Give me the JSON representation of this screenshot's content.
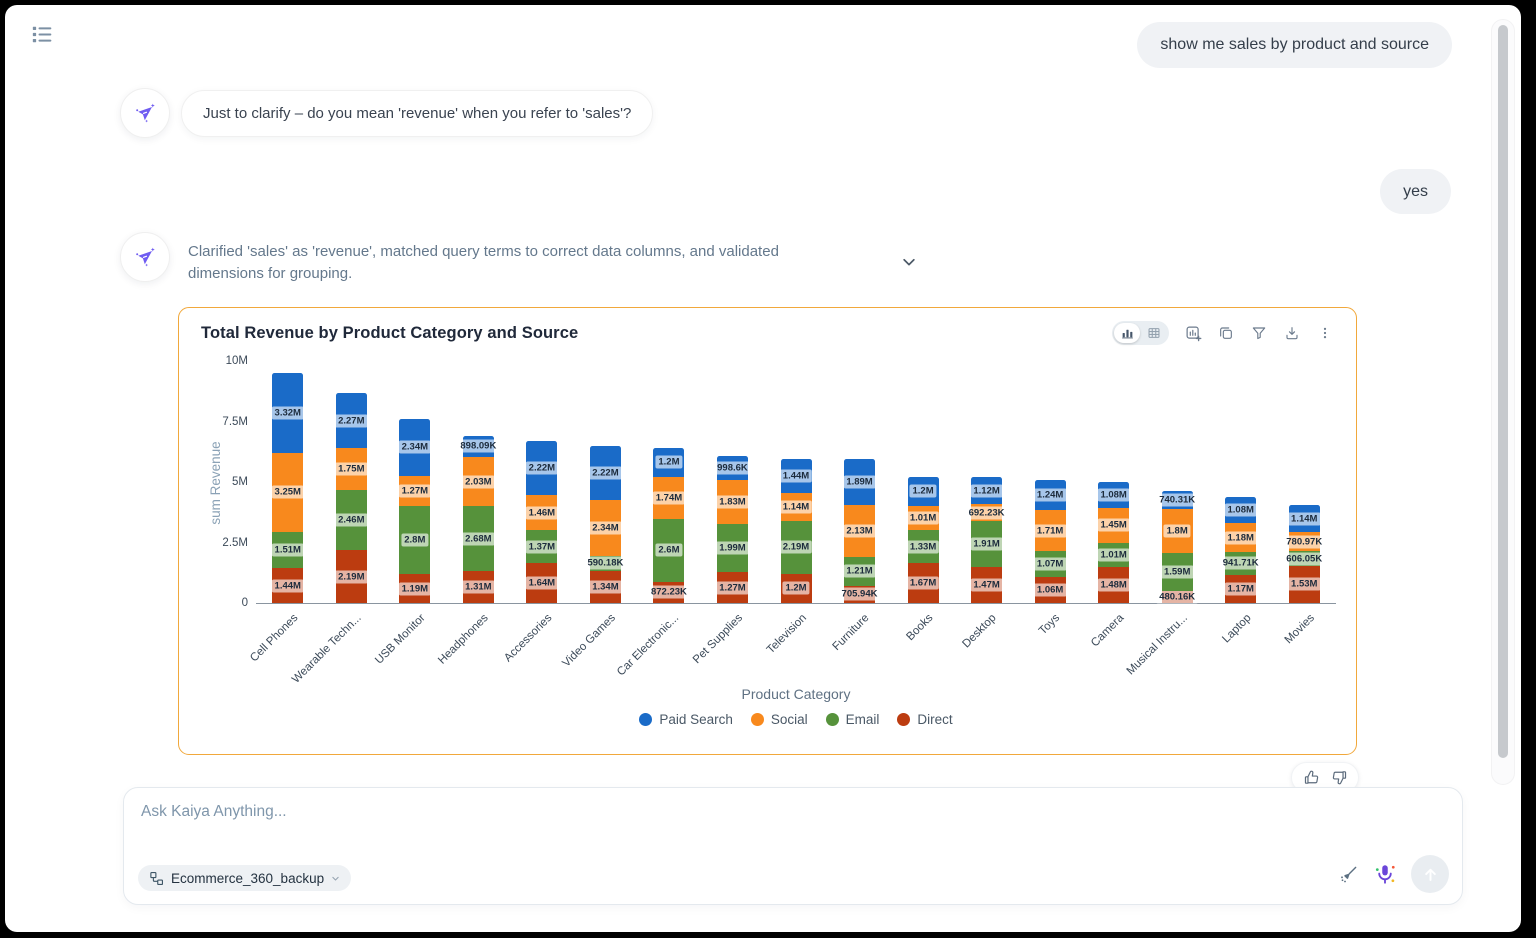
{
  "header": {
    "menu_icon": "list-icon"
  },
  "chat": {
    "user_message_1": "show me sales by product and source",
    "bot_clarify_message": "Just to clarify – do you mean 'revenue' when you refer to 'sales'?",
    "user_message_2": "yes",
    "bot_status_message": "Clarified 'sales' as 'revenue', matched query terms to correct data columns, and validated dimensions for grouping."
  },
  "chart_card": {
    "border_color": "#F1A83B",
    "toolbar_icons": [
      "bar-chart-view-toggle",
      "table-view-toggle",
      "add-chart",
      "duplicate",
      "filter",
      "download",
      "more-options"
    ],
    "feedback_icons": [
      "thumbs-up",
      "thumbs-down"
    ]
  },
  "chart_data": {
    "type": "bar",
    "stacked": true,
    "title": "Total Revenue by Product Category and Source",
    "xlabel": "Product Category",
    "ylabel": "sum Revenue",
    "ylim": [
      0,
      10000000
    ],
    "ytick_labels": [
      "0",
      "2.5M",
      "5M",
      "7.5M",
      "10M"
    ],
    "grid": false,
    "legend_position": "bottom",
    "categories": [
      "Cell Phones",
      "Wearable Techn...",
      "USB Monitor",
      "Headphones",
      "Accessories",
      "Video Games",
      "Car Electronic...",
      "Pet Supplies",
      "Television",
      "Furniture",
      "Books",
      "Desktop",
      "Toys",
      "Camera",
      "Musical Instru...",
      "Laptop",
      "Movies"
    ],
    "series": [
      {
        "name": "Direct",
        "color": "#BC3C10",
        "values_millions": [
          1.44,
          2.19,
          1.19,
          1.31,
          1.64,
          1.34,
          0.87223,
          1.27,
          1.2,
          0.70594,
          1.67,
          1.47,
          1.06,
          1.48,
          0.48016,
          1.17,
          1.53
        ],
        "labels": [
          "1.44M",
          "2.19M",
          "1.19M",
          "1.31M",
          "1.64M",
          "1.34M",
          "872.23K",
          "1.27M",
          "1.2M",
          "705.94K",
          "1.67M",
          "1.47M",
          "1.06M",
          "1.48M",
          "480.16K",
          "1.17M",
          "1.53M"
        ]
      },
      {
        "name": "Email",
        "color": "#56923B",
        "values_millions": [
          1.51,
          2.46,
          2.8,
          2.68,
          1.37,
          0.59018,
          2.6,
          1.99,
          2.19,
          1.21,
          1.33,
          1.91,
          1.07,
          1.01,
          1.59,
          0.94171,
          0.60605
        ],
        "labels": [
          "1.51M",
          "2.46M",
          "2.8M",
          "2.68M",
          "1.37M",
          "590.18K",
          "2.6M",
          "1.99M",
          "2.19M",
          "1.21M",
          "1.33M",
          "1.91M",
          "1.07M",
          "1.01M",
          "1.59M",
          "941.71K",
          "606.05K"
        ]
      },
      {
        "name": "Social",
        "color": "#F8891D",
        "values_millions": [
          3.25,
          1.75,
          1.27,
          2.03,
          1.46,
          2.34,
          1.74,
          1.83,
          1.14,
          2.13,
          1.01,
          0.69223,
          1.71,
          1.45,
          1.8,
          1.18,
          0.78097
        ],
        "labels": [
          "3.25M",
          "1.75M",
          "1.27M",
          "2.03M",
          "1.46M",
          "2.34M",
          "1.74M",
          "1.83M",
          "1.14M",
          "2.13M",
          "1.01M",
          "692.23K",
          "1.71M",
          "1.45M",
          "1.8M",
          "1.18M",
          "780.97K"
        ]
      },
      {
        "name": "Paid Search",
        "color": "#1A6BC8",
        "values_millions": [
          3.32,
          2.27,
          2.34,
          0.89809,
          2.22,
          2.22,
          1.2,
          0.9986,
          1.44,
          1.89,
          1.2,
          1.12,
          1.24,
          1.08,
          0.74031,
          1.08,
          1.14
        ],
        "labels": [
          "3.32M",
          "2.27M",
          "2.34M",
          "898.09K",
          "2.22M",
          "2.22M",
          "1.2M",
          "998.6K",
          "1.44M",
          "1.89M",
          "1.2M",
          "1.12M",
          "1.24M",
          "1.08M",
          "740.31K",
          "1.08M",
          "1.14M"
        ]
      }
    ],
    "legend": [
      "Paid Search",
      "Social",
      "Email",
      "Direct"
    ]
  },
  "composer": {
    "placeholder": "Ask Kaiya Anything...",
    "dataset": "Ecommerce_360_backup",
    "icons": [
      "dataset",
      "chevron-down",
      "clean",
      "microphone",
      "send"
    ]
  }
}
